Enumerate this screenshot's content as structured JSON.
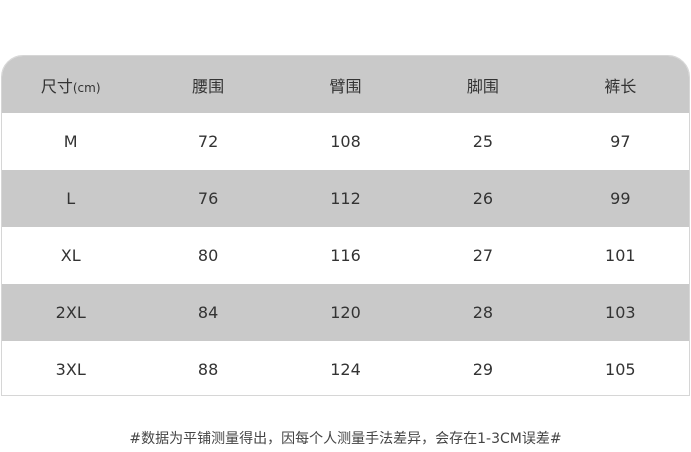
{
  "table": {
    "headers": [
      "尺寸",
      "腰围",
      "臂围",
      "脚围",
      "裤长"
    ],
    "unit": "(cm)",
    "rows": [
      [
        "M",
        "72",
        "108",
        "25",
        "97"
      ],
      [
        "L",
        "76",
        "112",
        "26",
        "99"
      ],
      [
        "XL",
        "80",
        "116",
        "27",
        "101"
      ],
      [
        "2XL",
        "84",
        "120",
        "28",
        "103"
      ],
      [
        "3XL",
        "88",
        "124",
        "29",
        "105"
      ]
    ]
  },
  "note": "#数据为平铺测量得出，因每个人测量手法差异，会存在1-3CM误差#",
  "colors": {
    "stripe": "#c9c9c9",
    "text": "#333333"
  }
}
